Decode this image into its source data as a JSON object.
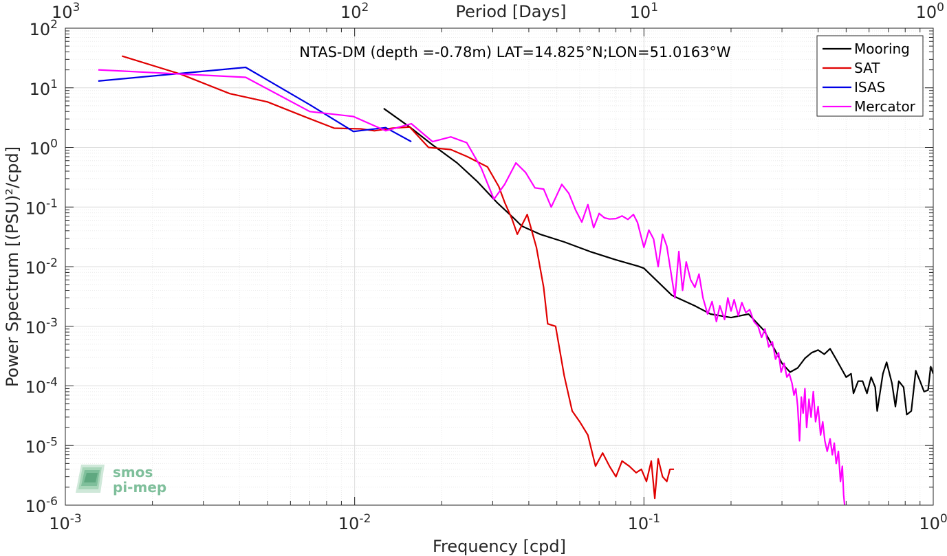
{
  "chart_data": {
    "type": "line",
    "title": "NTAS-DM (depth =-0.78m) LAT=14.825°N;LON=51.0163°W",
    "xlabel": "Frequency [cpd]",
    "ylabel": "Power Spectrum [(PSU)²/cpd]",
    "top_xlabel": "Period [Days]",
    "xscale": "log",
    "yscale": "log",
    "xlim": [
      0.001,
      1
    ],
    "ylim": [
      1e-06,
      100
    ],
    "grid": true,
    "legend_position": "top-right",
    "x_ticks": [
      {
        "base": "10",
        "exp": "-3"
      },
      {
        "base": "10",
        "exp": "-2"
      },
      {
        "base": "10",
        "exp": "-1"
      },
      {
        "base": "10",
        "exp": "0"
      }
    ],
    "x_ticks_plain": [
      "10⁻³",
      "10⁻²",
      "10⁻¹",
      "10⁰"
    ],
    "top_ticks": [
      {
        "base": "10",
        "exp": "3"
      },
      {
        "base": "10",
        "exp": "2"
      },
      {
        "base": "10",
        "exp": "1"
      },
      {
        "base": "10",
        "exp": "0"
      }
    ],
    "y_ticks": [
      {
        "base": "10",
        "exp": "2"
      },
      {
        "base": "10",
        "exp": "1"
      },
      {
        "base": "10",
        "exp": "0"
      },
      {
        "base": "10",
        "exp": "-1"
      },
      {
        "base": "10",
        "exp": "-2"
      },
      {
        "base": "10",
        "exp": "-3"
      },
      {
        "base": "10",
        "exp": "-4"
      },
      {
        "base": "10",
        "exp": "-5"
      },
      {
        "base": "10",
        "exp": "-6"
      }
    ],
    "series": [
      {
        "name": "Mooring",
        "color": "#000000",
        "points": [
          [
            0.0126,
            4.5
          ],
          [
            0.0155,
            2.2
          ],
          [
            0.0186,
            1.1
          ],
          [
            0.0226,
            0.55
          ],
          [
            0.0265,
            0.27
          ],
          [
            0.031,
            0.12
          ],
          [
            0.0355,
            0.065
          ],
          [
            0.0378,
            0.048
          ],
          [
            0.0437,
            0.035
          ],
          [
            0.053,
            0.026
          ],
          [
            0.065,
            0.018
          ],
          [
            0.08,
            0.013
          ],
          [
            0.0955,
            0.0102
          ],
          [
            0.1,
            0.0094
          ],
          [
            0.11,
            0.006
          ],
          [
            0.125,
            0.0033
          ],
          [
            0.15,
            0.0022
          ],
          [
            0.17,
            0.0016
          ],
          [
            0.2,
            0.0014
          ],
          [
            0.23,
            0.0016
          ],
          [
            0.26,
            0.00085
          ],
          [
            0.28,
            0.00045
          ],
          [
            0.3,
            0.00024
          ],
          [
            0.32,
            0.00017
          ],
          [
            0.34,
            0.0002
          ],
          [
            0.36,
            0.00029
          ],
          [
            0.38,
            0.00036
          ],
          [
            0.4,
            0.0004
          ],
          [
            0.42,
            0.00034
          ],
          [
            0.44,
            0.00042
          ],
          [
            0.46,
            0.00029
          ],
          [
            0.48,
            0.0002
          ],
          [
            0.5,
            0.00014
          ],
          [
            0.52,
            0.00016
          ],
          [
            0.53,
            7.5e-05
          ],
          [
            0.55,
            0.00012
          ],
          [
            0.57,
            0.00012
          ],
          [
            0.59,
            7.5e-05
          ],
          [
            0.61,
            0.00014
          ],
          [
            0.63,
            9.5e-05
          ],
          [
            0.64,
            3.8e-05
          ],
          [
            0.67,
            0.00016
          ],
          [
            0.69,
            0.00025
          ],
          [
            0.72,
            0.00011
          ],
          [
            0.74,
            4.5e-05
          ],
          [
            0.76,
            0.00012
          ],
          [
            0.79,
            9.5e-05
          ],
          [
            0.81,
            3.3e-05
          ],
          [
            0.84,
            3.8e-05
          ],
          [
            0.87,
            0.00018
          ],
          [
            0.9,
            0.00012
          ],
          [
            0.93,
            8e-05
          ],
          [
            0.96,
            8.5e-05
          ],
          [
            0.98,
            0.00021
          ],
          [
            1.0,
            0.00016
          ]
        ]
      },
      {
        "name": "SAT",
        "color": "#e00000",
        "points": [
          [
            0.00157,
            34
          ],
          [
            0.0025,
            17
          ],
          [
            0.0037,
            8
          ],
          [
            0.005,
            5.8
          ],
          [
            0.0068,
            3.2
          ],
          [
            0.0085,
            2.1
          ],
          [
            0.0105,
            2.05
          ],
          [
            0.0117,
            1.9
          ],
          [
            0.0135,
            2.1
          ],
          [
            0.0155,
            2.2
          ],
          [
            0.018,
            1.0
          ],
          [
            0.0215,
            0.92
          ],
          [
            0.0245,
            0.7
          ],
          [
            0.0288,
            0.47
          ],
          [
            0.0315,
            0.22
          ],
          [
            0.033,
            0.12
          ],
          [
            0.035,
            0.063
          ],
          [
            0.0365,
            0.035
          ],
          [
            0.0395,
            0.075
          ],
          [
            0.0425,
            0.021
          ],
          [
            0.045,
            0.0045
          ],
          [
            0.0465,
            0.0011
          ],
          [
            0.0495,
            0.001
          ],
          [
            0.053,
            0.00015
          ],
          [
            0.0565,
            3.8e-05
          ],
          [
            0.06,
            2.5e-05
          ],
          [
            0.064,
            1.5e-05
          ],
          [
            0.068,
            4.5e-06
          ],
          [
            0.072,
            7.5e-06
          ],
          [
            0.076,
            4.5e-06
          ],
          [
            0.08,
            3e-06
          ],
          [
            0.084,
            5.5e-06
          ],
          [
            0.089,
            4.5e-06
          ],
          [
            0.094,
            3.5e-06
          ],
          [
            0.098,
            4e-06
          ],
          [
            0.102,
            2.5e-06
          ],
          [
            0.106,
            5.5e-06
          ],
          [
            0.109,
            1.3e-06
          ],
          [
            0.112,
            6e-06
          ],
          [
            0.116,
            3e-06
          ],
          [
            0.12,
            2.5e-06
          ],
          [
            0.123,
            4e-06
          ],
          [
            0.127,
            4e-06
          ]
        ]
      },
      {
        "name": "ISAS",
        "color": "#0000e6",
        "points": [
          [
            0.0013,
            13
          ],
          [
            0.0042,
            22
          ],
          [
            0.007,
            5.2
          ],
          [
            0.0099,
            1.85
          ],
          [
            0.0128,
            2.15
          ],
          [
            0.0157,
            1.25
          ]
        ]
      },
      {
        "name": "Mercator",
        "color": "#ff00ff",
        "points": [
          [
            0.0013,
            20
          ],
          [
            0.0042,
            15
          ],
          [
            0.007,
            4.0
          ],
          [
            0.0099,
            3.3
          ],
          [
            0.0128,
            1.9
          ],
          [
            0.0157,
            2.5
          ],
          [
            0.0186,
            1.25
          ],
          [
            0.0215,
            1.5
          ],
          [
            0.0244,
            1.2
          ],
          [
            0.0274,
            0.45
          ],
          [
            0.0303,
            0.135
          ],
          [
            0.033,
            0.24
          ],
          [
            0.0361,
            0.55
          ],
          [
            0.039,
            0.38
          ],
          [
            0.042,
            0.21
          ],
          [
            0.045,
            0.2
          ],
          [
            0.0478,
            0.1
          ],
          [
            0.052,
            0.24
          ],
          [
            0.055,
            0.17
          ],
          [
            0.058,
            0.09
          ],
          [
            0.061,
            0.056
          ],
          [
            0.064,
            0.11
          ],
          [
            0.067,
            0.045
          ],
          [
            0.07,
            0.078
          ],
          [
            0.073,
            0.066
          ],
          [
            0.076,
            0.063
          ],
          [
            0.08,
            0.064
          ],
          [
            0.084,
            0.071
          ],
          [
            0.088,
            0.062
          ],
          [
            0.092,
            0.075
          ],
          [
            0.095,
            0.055
          ],
          [
            0.1,
            0.021
          ],
          [
            0.104,
            0.041
          ],
          [
            0.108,
            0.029
          ],
          [
            0.112,
            0.01
          ],
          [
            0.116,
            0.035
          ],
          [
            0.12,
            0.022
          ],
          [
            0.124,
            0.008
          ],
          [
            0.128,
            0.003
          ],
          [
            0.132,
            0.018
          ],
          [
            0.136,
            0.004
          ],
          [
            0.14,
            0.012
          ],
          [
            0.145,
            0.006
          ],
          [
            0.15,
            0.0045
          ],
          [
            0.155,
            0.0075
          ],
          [
            0.16,
            0.003
          ],
          [
            0.166,
            0.0016
          ],
          [
            0.172,
            0.0026
          ],
          [
            0.178,
            0.0012
          ],
          [
            0.183,
            0.0022
          ],
          [
            0.19,
            0.0013
          ],
          [
            0.195,
            0.003
          ],
          [
            0.2,
            0.0018
          ],
          [
            0.205,
            0.0028
          ],
          [
            0.212,
            0.0015
          ],
          [
            0.218,
            0.0025
          ],
          [
            0.225,
            0.0017
          ],
          [
            0.232,
            0.0019
          ],
          [
            0.24,
            0.0012
          ],
          [
            0.248,
            0.001
          ],
          [
            0.255,
            0.00065
          ],
          [
            0.262,
            0.0009
          ],
          [
            0.27,
            0.00045
          ],
          [
            0.278,
            0.00055
          ],
          [
            0.285,
            0.00028
          ],
          [
            0.292,
            0.00036
          ],
          [
            0.298,
            0.00017
          ],
          [
            0.305,
            0.00024
          ],
          [
            0.312,
            0.00014
          ],
          [
            0.318,
            0.00016
          ],
          [
            0.325,
            0.00011
          ],
          [
            0.33,
            7e-05
          ],
          [
            0.335,
            9e-05
          ],
          [
            0.34,
            4.5e-05
          ],
          [
            0.345,
            1.2e-05
          ],
          [
            0.35,
            6.5e-05
          ],
          [
            0.355,
            3.5e-05
          ],
          [
            0.36,
            9e-05
          ],
          [
            0.365,
            2e-05
          ],
          [
            0.372,
            6e-05
          ],
          [
            0.378,
            3e-05
          ],
          [
            0.385,
            8e-05
          ],
          [
            0.392,
            2.5e-05
          ],
          [
            0.4,
            4.5e-05
          ],
          [
            0.408,
            1.5e-05
          ],
          [
            0.415,
            2.5e-05
          ],
          [
            0.422,
            1.2e-05
          ],
          [
            0.43,
            8e-06
          ],
          [
            0.44,
            1.3e-05
          ],
          [
            0.448,
            7e-06
          ],
          [
            0.455,
            1.1e-05
          ],
          [
            0.462,
            5e-06
          ],
          [
            0.47,
            8e-06
          ],
          [
            0.478,
            2.5e-06
          ],
          [
            0.485,
            4.5e-06
          ],
          [
            0.49,
            1.5e-06
          ],
          [
            0.496,
            8e-07
          ]
        ]
      }
    ]
  },
  "logo": {
    "line1": "smos",
    "line2": "pi-mep"
  }
}
